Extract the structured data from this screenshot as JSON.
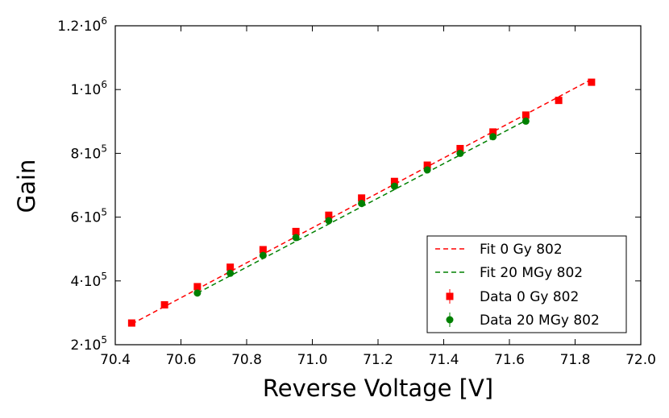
{
  "chart_data": {
    "type": "scatter",
    "title": "",
    "xlabel": "Reverse Voltage [V]",
    "ylabel": "Gain",
    "xlim": [
      70.4,
      72.0
    ],
    "ylim": [
      200000,
      1200000
    ],
    "grid": false,
    "legend_position": "bottom-right",
    "x_ticks": [
      70.4,
      70.6,
      70.8,
      71.0,
      71.2,
      71.4,
      71.6,
      71.8,
      72.0
    ],
    "x_tick_labels": [
      "70.4",
      "70.6",
      "70.8",
      "71.0",
      "71.2",
      "71.4",
      "71.6",
      "71.8",
      "72.0"
    ],
    "y_ticks": [
      {
        "value": 200000,
        "mantissa": "2",
        "base": "10",
        "exp": "5"
      },
      {
        "value": 400000,
        "mantissa": "4",
        "base": "10",
        "exp": "5"
      },
      {
        "value": 600000,
        "mantissa": "6",
        "base": "10",
        "exp": "5"
      },
      {
        "value": 800000,
        "mantissa": "8",
        "base": "10",
        "exp": "5"
      },
      {
        "value": 1000000,
        "mantissa": "1",
        "base": "10",
        "exp": "6"
      },
      {
        "value": 1200000,
        "mantissa": "1.2",
        "base": "10",
        "exp": "6"
      }
    ],
    "series": [
      {
        "name": "Fit 0 Gy 802",
        "kind": "fit",
        "color": "#ff0000",
        "x": [
          70.45,
          71.85
        ],
        "y": [
          265000,
          1032000
        ]
      },
      {
        "name": "Fit 20 MGy 802",
        "kind": "fit",
        "color": "#008000",
        "x": [
          70.65,
          71.65
        ],
        "y": [
          362000,
          903000
        ]
      },
      {
        "name": "Data 0 Gy 802",
        "kind": "data",
        "marker": "square",
        "color": "#ff0000",
        "x": [
          70.45,
          70.55,
          70.65,
          70.75,
          70.85,
          70.95,
          71.05,
          71.15,
          71.25,
          71.35,
          71.45,
          71.55,
          71.65,
          71.75,
          71.85
        ],
        "y": [
          268000,
          325000,
          382000,
          443000,
          498000,
          555000,
          606000,
          660000,
          712000,
          763000,
          815000,
          867000,
          920000,
          966000,
          1023000
        ]
      },
      {
        "name": "Data 20 MGy 802",
        "kind": "data",
        "marker": "circle",
        "color": "#008000",
        "x": [
          70.65,
          70.75,
          70.85,
          70.95,
          71.05,
          71.15,
          71.25,
          71.35,
          71.45,
          71.55,
          71.65
        ],
        "y": [
          362000,
          424000,
          480000,
          536000,
          589000,
          643000,
          697000,
          748000,
          800000,
          852000,
          901000
        ]
      }
    ]
  }
}
